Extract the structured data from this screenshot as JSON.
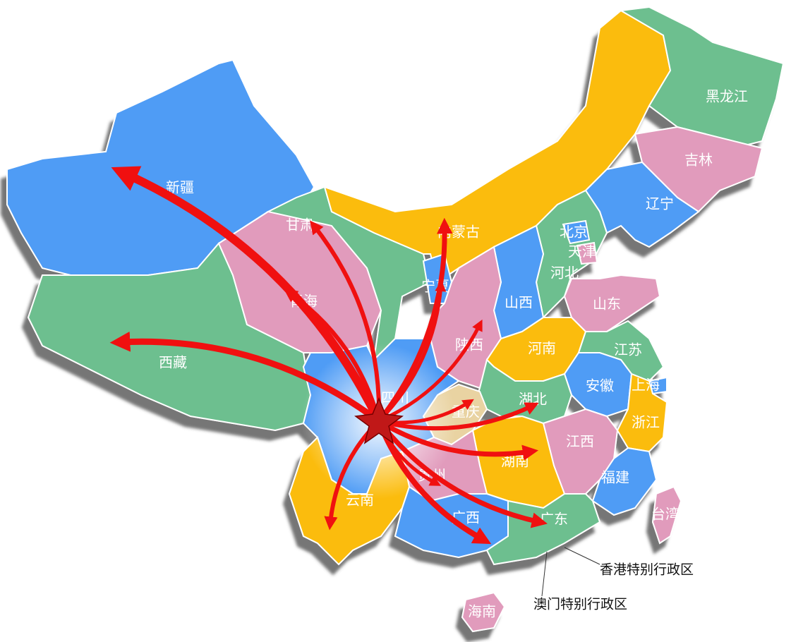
{
  "regions": [
    "新疆",
    "西藏",
    "青海",
    "甘肃",
    "内蒙古",
    "黑龙江",
    "吉林",
    "辽宁",
    "河北",
    "北京",
    "天津",
    "山西",
    "山东",
    "宁夏",
    "陕西",
    "河南",
    "江苏",
    "上海",
    "安徽",
    "湖北",
    "浙江",
    "江西",
    "福建",
    "湖南",
    "重庆",
    "四川",
    "贵州",
    "云南",
    "广西",
    "广东",
    "海南",
    "台湾"
  ],
  "annotations": [
    "香港特别行政区",
    "澳门特别行政区"
  ]
}
